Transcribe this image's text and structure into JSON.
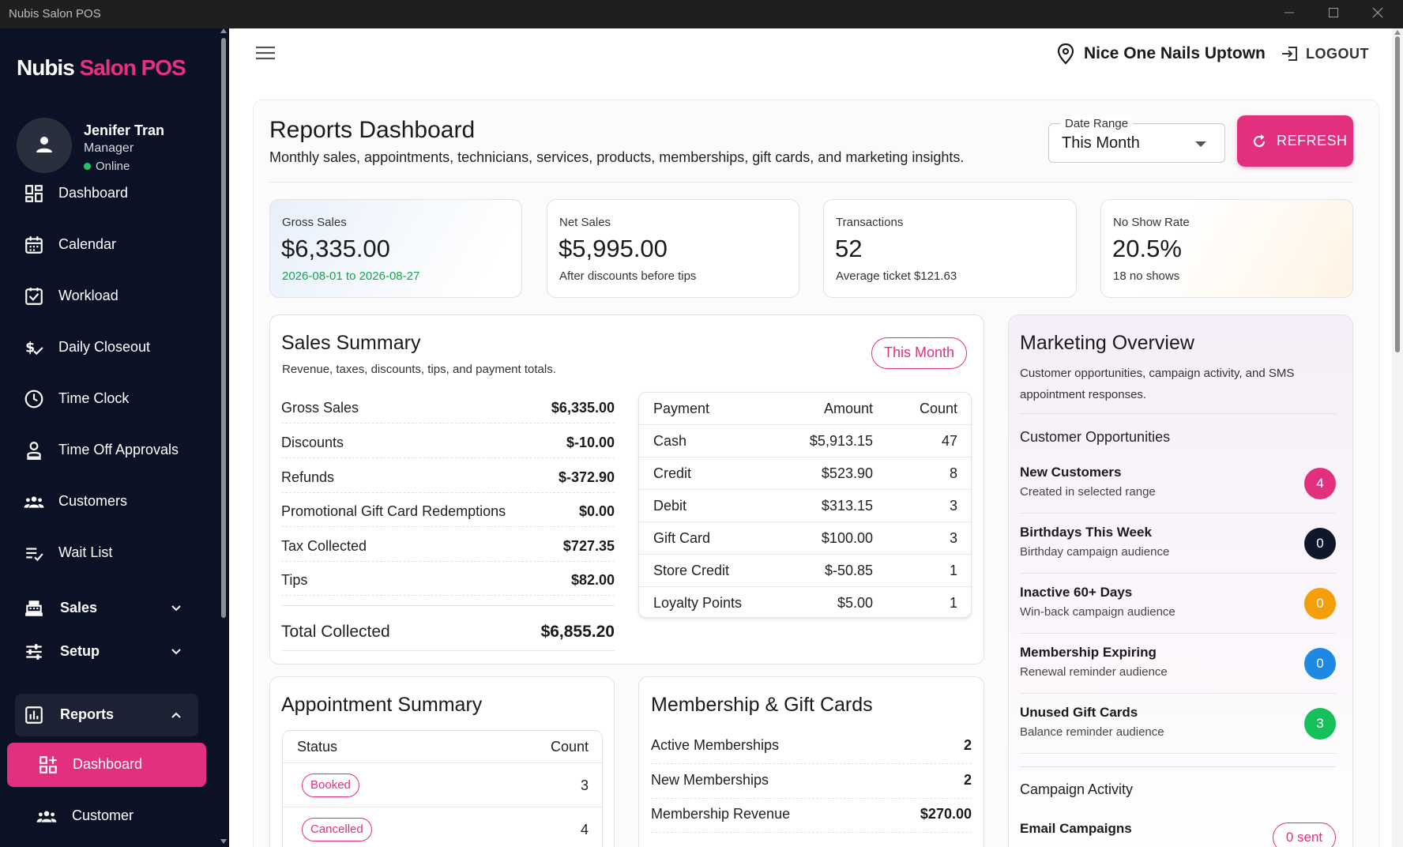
{
  "window": {
    "title": "Nubis Salon POS"
  },
  "sidebar": {
    "logo_part1": "Nubis",
    "logo_part2": "Salon POS",
    "user": {
      "name": "Jenifer Tran",
      "role": "Manager",
      "status": "Online"
    },
    "items": [
      {
        "label": "Dashboard",
        "icon": "dashboard-icon"
      },
      {
        "label": "Calendar",
        "icon": "calendar-icon"
      },
      {
        "label": "Workload",
        "icon": "workload-icon"
      },
      {
        "label": "Daily Closeout",
        "icon": "closeout-icon"
      },
      {
        "label": "Time Clock",
        "icon": "clock-icon"
      },
      {
        "label": "Time Off Approvals",
        "icon": "time-off-icon"
      },
      {
        "label": "Customers",
        "icon": "customers-icon"
      },
      {
        "label": "Wait List",
        "icon": "wait-list-icon"
      }
    ],
    "groups": [
      {
        "label": "Sales",
        "icon": "register-icon"
      },
      {
        "label": "Setup",
        "icon": "sliders-icon"
      },
      {
        "label": "Reports",
        "icon": "reports-icon"
      }
    ],
    "sub_items": [
      {
        "label": "Dashboard",
        "icon": "dashboard-add-icon"
      },
      {
        "label": "Customer",
        "icon": "customers-icon"
      }
    ]
  },
  "header": {
    "location": "Nice One Nails Uptown",
    "logout_label": "LOGOUT"
  },
  "page": {
    "title": "Reports Dashboard",
    "subtitle": "Monthly sales, appointments, technicians, services, products, memberships, gift cards, and marketing insights.",
    "date_range_label": "Date Range",
    "date_range_value": "This Month",
    "refresh_label": "REFRESH"
  },
  "stats": [
    {
      "label": "Gross Sales",
      "value": "$6,335.00",
      "sub": "2026-08-01 to 2026-08-27"
    },
    {
      "label": "Net Sales",
      "value": "$5,995.00",
      "sub": "After discounts before tips"
    },
    {
      "label": "Transactions",
      "value": "52",
      "sub": "Average ticket $121.63"
    },
    {
      "label": "No Show Rate",
      "value": "20.5%",
      "sub": "18 no shows"
    }
  ],
  "sales_summary": {
    "title": "Sales Summary",
    "subtitle": "Revenue, taxes, discounts, tips, and payment totals.",
    "period_pill": "This Month",
    "rows": [
      {
        "label": "Gross Sales",
        "value": "$6,335.00"
      },
      {
        "label": "Discounts",
        "value": "$-10.00"
      },
      {
        "label": "Refunds",
        "value": "$-372.90"
      },
      {
        "label": "Promotional Gift Card Redemptions",
        "value": "$0.00"
      },
      {
        "label": "Tax Collected",
        "value": "$727.35"
      },
      {
        "label": "Tips",
        "value": "$82.00"
      }
    ],
    "total_label": "Total Collected",
    "total_value": "$6,855.20",
    "payment_headers": [
      "Payment",
      "Amount",
      "Count"
    ],
    "payments": [
      {
        "method": "Cash",
        "amount": "$5,913.15",
        "count": "47"
      },
      {
        "method": "Credit",
        "amount": "$523.90",
        "count": "8"
      },
      {
        "method": "Debit",
        "amount": "$313.15",
        "count": "3"
      },
      {
        "method": "Gift Card",
        "amount": "$100.00",
        "count": "3"
      },
      {
        "method": "Store Credit",
        "amount": "$-50.85",
        "count": "1"
      },
      {
        "method": "Loyalty Points",
        "amount": "$5.00",
        "count": "1"
      }
    ]
  },
  "marketing": {
    "title": "Marketing Overview",
    "subtitle_line1": "Customer opportunities, campaign activity, and SMS",
    "subtitle_line2": "appointment responses.",
    "opportunities_title": "Customer Opportunities",
    "opportunities": [
      {
        "title": "New Customers",
        "desc": "Created in selected range",
        "count": "4",
        "color": "#e2307f"
      },
      {
        "title": "Birthdays This Week",
        "desc": "Birthday campaign audience",
        "count": "0",
        "color": "#0f172a"
      },
      {
        "title": "Inactive 60+ Days",
        "desc": "Win-back campaign audience",
        "count": "0",
        "color": "#f59e0b"
      },
      {
        "title": "Membership Expiring",
        "desc": "Renewal reminder audience",
        "count": "0",
        "color": "#1e88e5"
      },
      {
        "title": "Unused Gift Cards",
        "desc": "Balance reminder audience",
        "count": "3",
        "color": "#16c05a"
      }
    ],
    "campaign_title": "Campaign Activity",
    "email_campaigns_label": "Email Campaigns",
    "email_campaigns_pill": "0 sent"
  },
  "appointment_summary": {
    "title": "Appointment Summary",
    "headers": [
      "Status",
      "Count"
    ],
    "rows": [
      {
        "status": "Booked",
        "count": "3"
      },
      {
        "status": "Cancelled",
        "count": "4"
      }
    ]
  },
  "membership_gift": {
    "title": "Membership & Gift Cards",
    "rows": [
      {
        "label": "Active Memberships",
        "value": "2"
      },
      {
        "label": "New Memberships",
        "value": "2"
      },
      {
        "label": "Membership Revenue",
        "value": "$270.00"
      }
    ]
  },
  "colors": {
    "accent": "#e2307f",
    "sidebar_bg": "#0b1226",
    "online": "#22c55e",
    "success": "#16a34a"
  }
}
